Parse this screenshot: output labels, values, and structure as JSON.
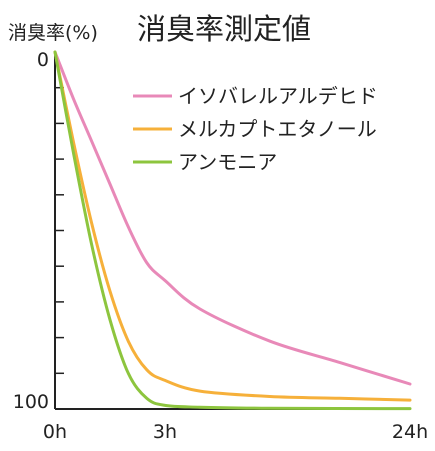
{
  "chart_data": {
    "type": "line",
    "title": "消臭率測定値",
    "ylabel": "消臭率(%)",
    "xlabel": "",
    "x_ticks": [
      "0h",
      "3h",
      "24h"
    ],
    "y_ticks": [
      "0",
      "100"
    ],
    "ylim": [
      0,
      100
    ],
    "y_inverted": true,
    "grid": false,
    "legend_position": "top-right",
    "series": [
      {
        "name": "イソバレルアルデヒド",
        "color": "#e889b8",
        "points": [
          [
            0,
            0
          ],
          [
            0.5,
            13
          ],
          [
            1,
            25
          ],
          [
            1.5,
            37
          ],
          [
            2,
            49
          ],
          [
            2.5,
            59
          ],
          [
            3,
            64
          ],
          [
            6,
            72
          ],
          [
            12,
            81
          ],
          [
            18,
            87
          ],
          [
            24,
            93
          ]
        ]
      },
      {
        "name": "メルカプトエタノール",
        "color": "#f6b03a",
        "points": [
          [
            0,
            0
          ],
          [
            0.5,
            25
          ],
          [
            1,
            48
          ],
          [
            1.5,
            67
          ],
          [
            2,
            81
          ],
          [
            2.5,
            89
          ],
          [
            3,
            92
          ],
          [
            6,
            95
          ],
          [
            12,
            96.5
          ],
          [
            18,
            97
          ],
          [
            24,
            97.5
          ]
        ]
      },
      {
        "name": "アンモニア",
        "color": "#8dc53e",
        "points": [
          [
            0,
            0
          ],
          [
            0.5,
            28
          ],
          [
            1,
            54
          ],
          [
            1.5,
            75
          ],
          [
            2,
            90
          ],
          [
            2.5,
            97
          ],
          [
            3,
            99
          ],
          [
            6,
            99.5
          ],
          [
            12,
            99.8
          ],
          [
            24,
            99.9
          ]
        ]
      }
    ]
  }
}
